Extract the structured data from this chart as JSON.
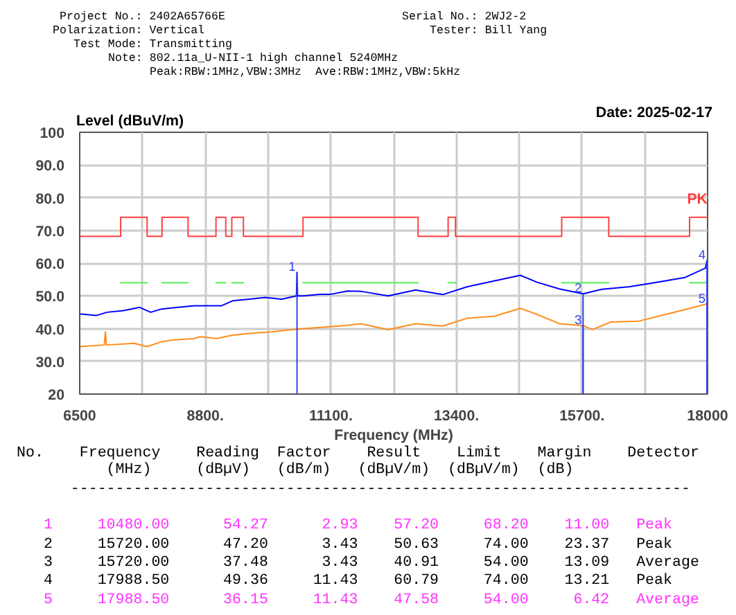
{
  "chart_data": {
    "type": "line",
    "xlabel": "Frequency (MHz)",
    "ylabel": "Level (dBuV/m)",
    "xlim": [
      6500,
      18000
    ],
    "ylim": [
      20,
      100
    ],
    "xticks": [
      6500,
      {
        "value": 7650,
        "label": null
      },
      {
        "value": 8800,
        "label": "8800."
      },
      {
        "value": 9950,
        "label": null
      },
      {
        "value": 11100,
        "label": "11100."
      },
      {
        "value": 12250,
        "label": null
      },
      {
        "value": 13400,
        "label": "13400."
      },
      {
        "value": 14550,
        "label": null
      },
      {
        "value": 15700,
        "label": "15700."
      },
      {
        "value": 16850,
        "label": null
      },
      18000
    ],
    "yticks": [
      20,
      {
        "value": 30,
        "label": "30.0"
      },
      {
        "value": 40,
        "label": "40.0"
      },
      {
        "value": 50,
        "label": "50.0"
      },
      {
        "value": 60,
        "label": "60.0"
      },
      {
        "value": 70,
        "label": "70.0"
      },
      {
        "value": 80,
        "label": "80.0"
      },
      {
        "value": 90,
        "label": "90.0"
      },
      100
    ],
    "grid": true,
    "series": [
      {
        "color": "#0000ff",
        "x": [
          6500,
          6800,
          7000,
          7300,
          7600,
          7800,
          8000,
          8300,
          8600,
          8900,
          9100,
          9300,
          9600,
          9900,
          10200,
          10470,
          10480,
          10490,
          10600,
          10900,
          11100,
          11400,
          11650,
          12150,
          12650,
          13150,
          13600,
          14100,
          14570,
          14870,
          15290,
          15720,
          16060,
          16570,
          17080,
          17580,
          17960,
          17988.5
        ],
        "values": [
          44.5,
          44,
          45,
          45.5,
          46.5,
          45,
          46,
          46.5,
          47,
          47,
          47,
          48.5,
          49,
          49.5,
          49,
          50,
          57.2,
          50,
          50,
          50.5,
          50.5,
          51.5,
          51.4,
          50,
          51.8,
          50.4,
          52.8,
          54.6,
          56.3,
          54.2,
          52.1,
          50.63,
          52,
          52.8,
          54.2,
          55.6,
          58.5,
          60.79
        ]
      },
      {
        "color": "#ff8c1a",
        "x": [
          6500,
          6950,
          6970,
          6990,
          7500,
          7735,
          8000,
          8200,
          8600,
          8700,
          9000,
          9300,
          9600,
          10000,
          10300,
          10600,
          11000,
          11400,
          11650,
          12150,
          12650,
          13150,
          13600,
          14100,
          14570,
          14870,
          15290,
          15720,
          15890,
          16230,
          16740,
          17240,
          17750,
          17988.5,
          18000
        ],
        "values": [
          34.5,
          35,
          39,
          35,
          35.5,
          34.5,
          36,
          36.5,
          37,
          37.5,
          37,
          38,
          38.5,
          39,
          39.5,
          40,
          40.5,
          41,
          41.5,
          39.7,
          41.5,
          40.8,
          43.2,
          43.8,
          46.2,
          44.4,
          41.5,
          40.91,
          39.7,
          42,
          42.3,
          44.4,
          46.5,
          47.58,
          47.9
        ]
      },
      {
        "name": "PK",
        "color": "#ff4040",
        "x": [
          6500,
          7250,
          7250,
          7735,
          7735,
          8008,
          8008,
          8485,
          8485,
          8996,
          8996,
          9175,
          9175,
          9286,
          9286,
          9499,
          9499,
          10590,
          10590,
          12698,
          12698,
          13248,
          13248,
          13383,
          13383,
          14466,
          14466,
          15328,
          15328,
          16190,
          16190,
          17670,
          17670,
          18000
        ],
        "values": [
          68.2,
          68.2,
          74,
          74,
          68.2,
          68.2,
          74,
          74,
          68.2,
          68.2,
          74,
          74,
          68.2,
          68.2,
          74,
          74,
          68.2,
          68.2,
          74,
          74,
          68.2,
          68.2,
          74,
          74,
          68.2,
          68.2,
          68.2,
          68.2,
          74,
          74,
          68.2,
          68.2,
          74,
          74
        ]
      },
      {
        "color": "#55ee55",
        "x": [
          7250,
          7735,
          7736,
          8008,
          8485,
          8486,
          8996,
          9175,
          9176,
          9286,
          9499,
          9500,
          10590,
          12698,
          12699,
          13248,
          13383,
          13384,
          15328,
          16190,
          16191,
          17670,
          18000
        ],
        "values": [
          54,
          54,
          null,
          54,
          54,
          null,
          54,
          54,
          null,
          54,
          54,
          null,
          54,
          54,
          null,
          54,
          54,
          null,
          54,
          54,
          null,
          54,
          54
        ]
      }
    ],
    "annotations": [
      "Project No.: 2402A65766E",
      "Serial No.: 2WJ2-2",
      "Polarization: Vertical",
      "Tester: Bill Yang",
      "Test Mode: Transmitting",
      "Note: 802.11a_U-NII-1 high channel 5240MHz",
      "Peak:RBW:1MHz,VBW:3MHz  Ave:RBW:1MHz,VBW:5kHz",
      "Date: 2025-02-17",
      "No.    Frequency    Reading  Factor    Result    Limit    Margin    Detector",
      "          (MHz)     (dBµV)   (dB/m)   (dBµV/m)  (dBµV/m)  (dB)",
      "      ---------------------------------------------------------------------",
      "   1     10480.00      54.27      2.93    57.20     68.20    11.00   Peak",
      "   2     15720.00      47.20      3.43    50.63     74.00    23.37   Peak",
      "   3     15720.00      37.48      3.43    40.91     54.00    13.09   Average",
      "   4     17988.50      49.36     11.43    60.79     74.00    13.21   Peak",
      "   5     17988.50      36.15     11.43    47.58     54.00     6.42   Average",
      {
        "text": "1",
        "x": 10480,
        "y": 57.2
      },
      {
        "text": "2",
        "x": 15720,
        "y": 50.63
      },
      {
        "text": "3",
        "x": 15720,
        "y": 40.91
      },
      {
        "text": "4",
        "x": 17988.5,
        "y": 60.79
      },
      {
        "text": "5",
        "x": 17988.5,
        "y": 47.58
      }
    ]
  }
}
